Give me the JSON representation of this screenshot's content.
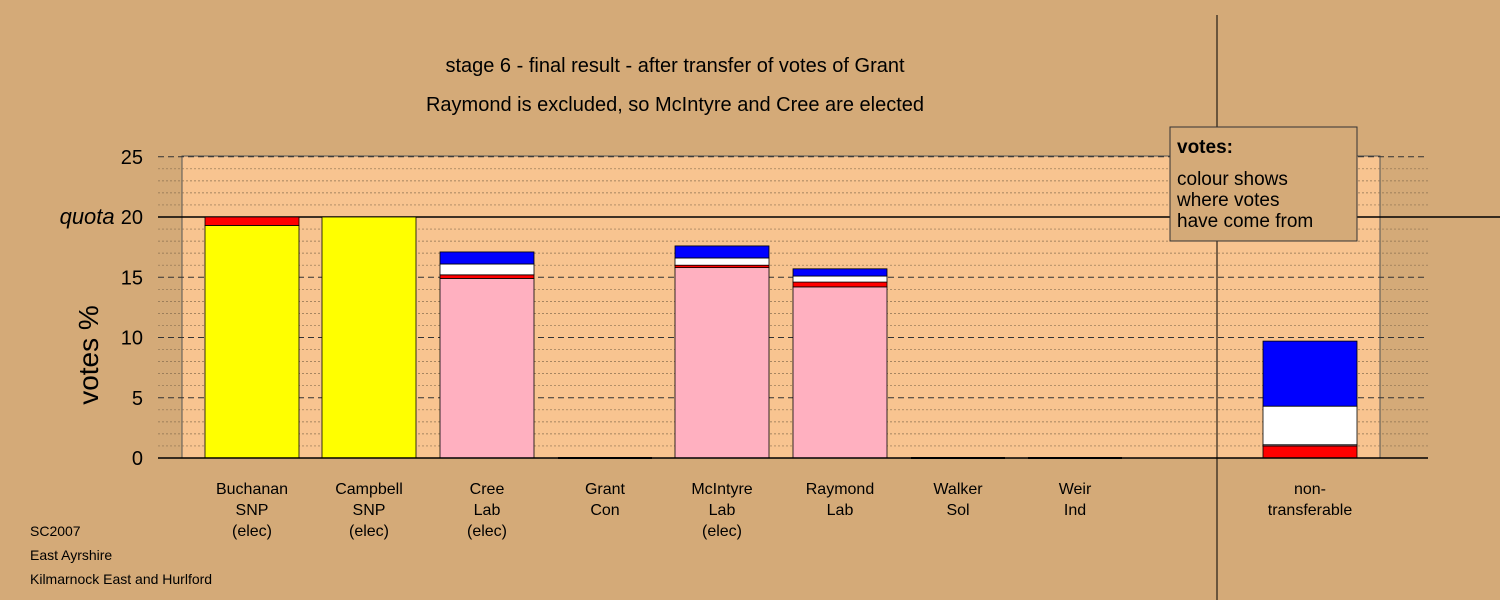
{
  "chart_data": {
    "type": "bar",
    "stacked": true,
    "title": "stage 6 - final result - after transfer of votes of Grant",
    "subtitle": "Raymond is excluded, so McIntyre and Cree are elected",
    "ylabel": "votes %",
    "ylim": [
      0,
      25
    ],
    "yticks": [
      "0",
      "5",
      "10",
      "15",
      "quota 20",
      "25"
    ],
    "quota": 20,
    "quota_label": "quota",
    "grid": "dashed horizontal",
    "categories": [
      {
        "label": [
          "Buchanan",
          "SNP",
          "(elec)"
        ]
      },
      {
        "label": [
          "Campbell",
          "SNP",
          "(elec)"
        ]
      },
      {
        "label": [
          "Cree",
          "Lab",
          "(elec)"
        ]
      },
      {
        "label": [
          "Grant",
          "Con"
        ]
      },
      {
        "label": [
          "McIntyre",
          "Lab",
          "(elec)"
        ]
      },
      {
        "label": [
          "Raymond",
          "Lab"
        ]
      },
      {
        "label": [
          "Walker",
          "Sol"
        ]
      },
      {
        "label": [
          "Weir",
          "Ind"
        ]
      },
      {
        "label": [
          "non-",
          "transferable"
        ]
      }
    ],
    "segments": [
      [
        {
          "value": 19.3,
          "color": "#ffff00"
        },
        {
          "value": 0.7,
          "color": "#ff0000"
        }
      ],
      [
        {
          "value": 20.0,
          "color": "#ffff00"
        }
      ],
      [
        {
          "value": 14.9,
          "color": "#ffb0c0"
        },
        {
          "value": 0.3,
          "color": "#ff0000"
        },
        {
          "value": 0.9,
          "color": "#ffffff"
        },
        {
          "value": 1.0,
          "color": "#0000ff"
        }
      ],
      [],
      [
        {
          "value": 15.8,
          "color": "#ffb0c0"
        },
        {
          "value": 0.2,
          "color": "#ff0000"
        },
        {
          "value": 0.6,
          "color": "#ffffff"
        },
        {
          "value": 1.0,
          "color": "#0000ff"
        }
      ],
      [
        {
          "value": 14.2,
          "color": "#ffb0c0"
        },
        {
          "value": 0.4,
          "color": "#ff0000"
        },
        {
          "value": 0.5,
          "color": "#ffffff"
        },
        {
          "value": 0.6,
          "color": "#0000ff"
        }
      ],
      [],
      [],
      [
        {
          "value": 1.0,
          "color": "#ff0000"
        },
        {
          "value": 0.1,
          "color": "#ffb0c0"
        },
        {
          "value": 3.2,
          "color": "#ffffff"
        },
        {
          "value": 5.4,
          "color": "#0000ff"
        }
      ]
    ],
    "legend": {
      "title": "votes:",
      "lines": [
        "colour shows",
        "where votes",
        "have come from"
      ],
      "placement": "top-right"
    }
  },
  "footer": [
    "SC2007",
    "East Ayrshire",
    "Kilmarnock East and Hurlford"
  ],
  "colors": {
    "background": "#d4aa78",
    "plot_area": "#f8c490",
    "legend_bg": "#d4aa78"
  }
}
